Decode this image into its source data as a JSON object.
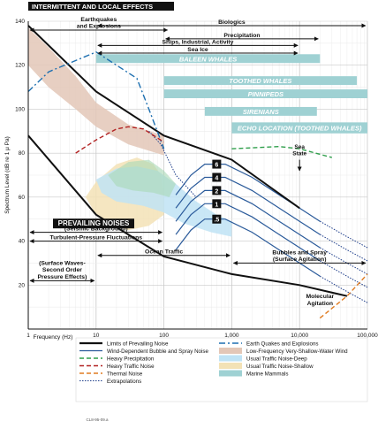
{
  "chart_data": {
    "type": "line",
    "x_scale": "log",
    "xlim": [
      1,
      100000
    ],
    "ylim": [
      0,
      140
    ],
    "xlabel": "Frequency (Hz)",
    "ylabel": "Spectrum Level (dB re 1 μ Pa)",
    "x_ticks": [
      {
        "value": 1,
        "label": "1"
      },
      {
        "value": 10,
        "label": "10"
      },
      {
        "value": 100,
        "label": "100"
      },
      {
        "value": 1000,
        "label": "1,000"
      },
      {
        "value": 10000,
        "label": "10,000"
      },
      {
        "value": 100000,
        "label": "100,000"
      }
    ],
    "y_ticks": [
      {
        "value": 20,
        "label": "20"
      },
      {
        "value": 40,
        "label": "40"
      },
      {
        "value": 60,
        "label": "60"
      },
      {
        "value": 80,
        "label": "80"
      },
      {
        "value": 100,
        "label": "100"
      },
      {
        "value": 120,
        "label": "120"
      },
      {
        "value": 140,
        "label": "140"
      }
    ],
    "grid": true,
    "headers": {
      "intermittent": "INTERMITTENT AND LOCAL EFFECTS",
      "prevailing": "PREVAILING NOISES"
    },
    "sea_state_label": "Sea\nState",
    "sea_states": [
      "6",
      "4",
      "2",
      "1",
      ".5"
    ],
    "top_ranges": [
      {
        "label": "Earthquakes\nand Explosions",
        "x1": 1,
        "x2": 120,
        "y": 136
      },
      {
        "label": "Biologics",
        "x1": 10,
        "x2": 100000,
        "y": 138
      },
      {
        "label": "Precipitation",
        "x1": 100,
        "x2": 20000,
        "y": 132
      },
      {
        "label": "Ships, Industrial, Activity",
        "x1": 10,
        "x2": 10000,
        "y": 129
      },
      {
        "label": "Sea Ice",
        "x1": 10,
        "x2": 10000,
        "y": 125.5
      }
    ],
    "bottom_ranges": [
      {
        "label": "(Seismic Background)",
        "x1": 1,
        "x2": 100,
        "y": 44
      },
      {
        "label": "Turbulent-Pressure Fluctuations",
        "x1": 1,
        "x2": 100,
        "y": 40
      },
      {
        "label": "Ocean Traffic",
        "x1": 10,
        "x2": 1000,
        "y": 33.5
      },
      {
        "label": "Bubbles and Spray\n(Surface Agitation)",
        "x1": 1000,
        "x2": 100000,
        "y": 30
      },
      {
        "label": "(Surface Waves-\nSecond Order\nPressure Effects)",
        "x1": 1,
        "x2": 10,
        "y": 22
      }
    ],
    "bands": [
      {
        "label": "BALEEN WHALES",
        "x1": 10,
        "x2": 20000,
        "y_low": 121,
        "y_high": 125
      },
      {
        "label": "TOOTHED WHALES",
        "x1": 100,
        "x2": 70000,
        "y_low": 111,
        "y_high": 115
      },
      {
        "label": "PINNIPEDS",
        "x1": 100,
        "x2": 100000,
        "y_low": 105,
        "y_high": 109
      },
      {
        "label": "SIRENIANS",
        "x1": 400,
        "x2": 18000,
        "y_low": 97,
        "y_high": 101
      },
      {
        "label": "ECHO LOCATION (TOOTHED WHALES)",
        "x1": 1000,
        "x2": 100000,
        "y_low": 89,
        "y_high": 94
      }
    ],
    "annotations": [
      {
        "text": "Molecular\nAgitation"
      }
    ],
    "series": [
      {
        "name": "Limits of Prevailing Noise",
        "style": "solid",
        "color": "#111111",
        "x": [
          1,
          10,
          100,
          1000,
          10000
        ],
        "y": [
          138,
          108,
          88,
          77,
          55
        ]
      },
      {
        "name": "Limits of Prevailing Noise",
        "style": "solid",
        "color": "#111111",
        "x": [
          1,
          10,
          100,
          1000,
          10000,
          50000
        ],
        "y": [
          88,
          52,
          33,
          25,
          20,
          15
        ]
      },
      {
        "name": "Earth Quakes and Explosions",
        "style": "dashdot",
        "color": "#1d6fb0",
        "x": [
          1,
          2,
          10,
          40,
          60,
          100
        ],
        "y": [
          108,
          117,
          126,
          114,
          100,
          82
        ]
      },
      {
        "name": "Heavy Traffic Noise",
        "style": "dash",
        "color": "#b22222",
        "x": [
          5,
          10,
          20,
          30,
          50,
          100
        ],
        "y": [
          80,
          86,
          91,
          92,
          91,
          85
        ]
      },
      {
        "name": "Heavy Precipitation",
        "style": "dash",
        "color": "#2e9e4a",
        "x": [
          1000,
          5000,
          10000,
          30000
        ],
        "y": [
          82,
          83,
          82,
          78
        ]
      },
      {
        "name": "Thermal Noise",
        "style": "dash",
        "color": "#e07b20",
        "x": [
          20000,
          50000,
          100000
        ],
        "y": [
          5,
          15,
          25
        ]
      }
    ],
    "legend": [
      {
        "key": "prevailing",
        "label": "Limits of Prevailing Noise",
        "color": "#111111"
      },
      {
        "key": "wind",
        "label": "Wind-Dependent Bubble and Spray Noise",
        "color": "#2a5a9a"
      },
      {
        "key": "precip",
        "label": "Heavy Precipitation",
        "color": "#2e9e4a"
      },
      {
        "key": "heavy_traffic",
        "label": "Heavy Traffic Noise",
        "color": "#b22222"
      },
      {
        "key": "thermal",
        "label": "Thermal Noise",
        "color": "#e07b20"
      },
      {
        "key": "extrap",
        "label": "Extrapolations",
        "color": "#1d3d8a"
      },
      {
        "key": "quake",
        "label": "Earth Quakes and Explosions",
        "color": "#1d6fb0"
      },
      {
        "key": "wind_shallow",
        "label": "Low-Frequency Very-Shallow-Water Wind",
        "color": "#e3c7b7"
      },
      {
        "key": "traffic_deep",
        "label": "Usual Traffic Noise-Deep",
        "color": "#bfe3f5"
      },
      {
        "key": "traffic_shallow",
        "label": "Usual Traffic Noise-Shallow",
        "color": "#f3e2b6"
      },
      {
        "key": "marine",
        "label": "Marine Mammals",
        "color": "#9fd1d3"
      }
    ],
    "footnote": "CL8-95-09.a"
  }
}
